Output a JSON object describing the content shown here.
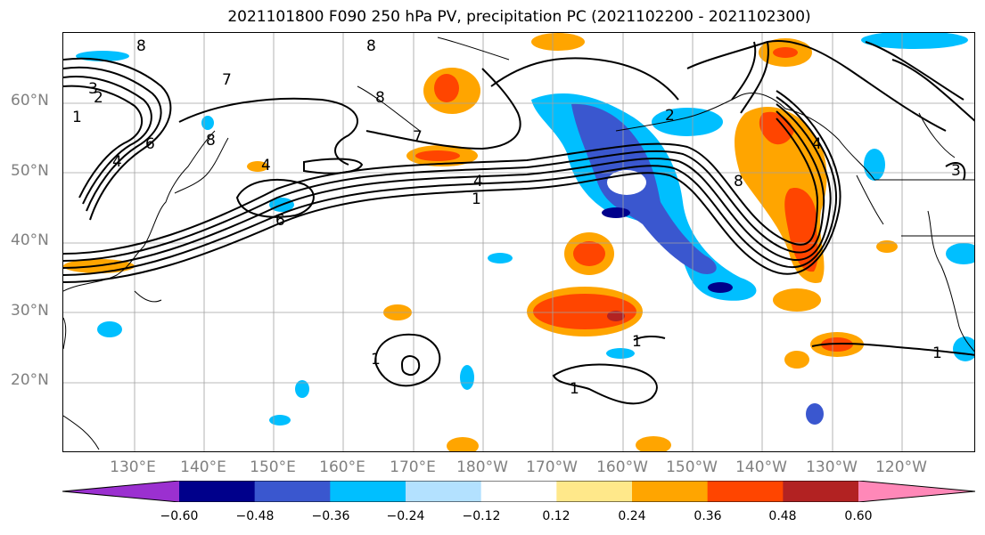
{
  "title": "2021101800 F090 250 hPa PV, precipitation PC (2021102200 - 2021102300)",
  "lat_labels": [
    "60°N",
    "50°N",
    "40°N",
    "30°N",
    "20°N"
  ],
  "lon_labels": [
    "130°E",
    "140°E",
    "150°E",
    "160°E",
    "170°E",
    "180°W",
    "170°W",
    "160°W",
    "150°W",
    "140°W",
    "130°W",
    "120°W"
  ],
  "colorbar": {
    "ticks": [
      "−0.60",
      "−0.48",
      "−0.36",
      "−0.24",
      "−0.12",
      "0.12",
      "0.24",
      "0.36",
      "0.48",
      "0.60"
    ],
    "colors": [
      "#9b30d0",
      "#00008b",
      "#3a57cf",
      "#00bfff",
      "#b3e1ff",
      "#ffffff",
      "#ffe88a",
      "#ffa500",
      "#ff4500",
      "#b22222",
      "#ff88b8"
    ]
  },
  "contour_labels": [
    {
      "text": "8"
    },
    {
      "text": "2"
    },
    {
      "text": "3"
    },
    {
      "text": "1"
    },
    {
      "text": "6"
    },
    {
      "text": "4"
    },
    {
      "text": "7"
    },
    {
      "text": "8"
    },
    {
      "text": "4"
    },
    {
      "text": "6"
    },
    {
      "text": "7"
    },
    {
      "text": "4"
    },
    {
      "text": "1"
    },
    {
      "text": "8"
    },
    {
      "text": "2"
    },
    {
      "text": "8"
    },
    {
      "text": "1"
    },
    {
      "text": "1"
    },
    {
      "text": "1"
    },
    {
      "text": "1"
    },
    {
      "text": "8"
    },
    {
      "text": "4"
    },
    {
      "text": "3"
    }
  ]
}
